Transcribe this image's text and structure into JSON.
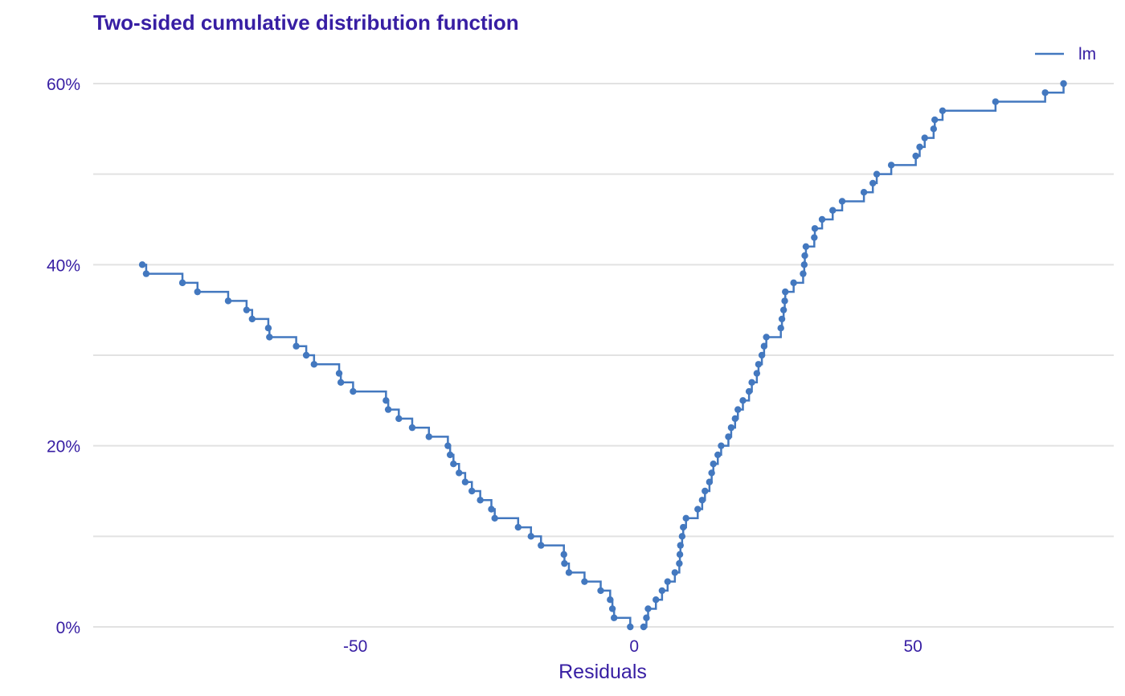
{
  "colors": {
    "text": "#371ea3",
    "series": "#4378bf",
    "grid": "#e2e2e2",
    "background": "#ffffff"
  },
  "chart_data": {
    "type": "line",
    "step": true,
    "title": "Two-sided cumulative distribution function",
    "xlabel": "Residuals",
    "ylabel": "",
    "xlim": [
      -97,
      86
    ],
    "ylim": [
      0,
      0.605
    ],
    "x_ticks": [
      {
        "value": -50,
        "label": "-50"
      },
      {
        "value": 0,
        "label": "0"
      },
      {
        "value": 50,
        "label": "50"
      }
    ],
    "y_ticks": [
      {
        "value": 0,
        "label": "0%"
      },
      {
        "value": 0.2,
        "label": "20%"
      },
      {
        "value": 0.4,
        "label": "40%"
      },
      {
        "value": 0.6,
        "label": "60%"
      }
    ],
    "y_minor_gridlines": [
      0.1,
      0.3,
      0.5
    ],
    "grid": true,
    "legend": {
      "position": "top-right",
      "entries": [
        "lm"
      ]
    },
    "series": [
      {
        "name": "lm",
        "color": "#4378bf",
        "left_x": [
          -88.2,
          -87.5,
          -81.0,
          -78.3,
          -72.8,
          -69.5,
          -68.5,
          -65.6,
          -65.4,
          -60.6,
          -58.8,
          -57.4,
          -52.9,
          -52.6,
          -50.4,
          -44.5,
          -44.1,
          -42.2,
          -39.8,
          -36.8,
          -33.4,
          -33.0,
          -32.4,
          -31.4,
          -30.3,
          -29.1,
          -27.6,
          -25.6,
          -25.0,
          -20.8,
          -18.5,
          -16.7,
          -12.6,
          -12.5,
          -11.7,
          -8.9,
          -6.0,
          -4.3,
          -3.9,
          -3.6,
          -0.7
        ],
        "left_y": [
          0.4,
          0.39,
          0.38,
          0.37,
          0.36,
          0.35,
          0.34,
          0.33,
          0.32,
          0.31,
          0.3,
          0.29,
          0.28,
          0.27,
          0.26,
          0.25,
          0.24,
          0.23,
          0.22,
          0.21,
          0.2,
          0.19,
          0.18,
          0.17,
          0.16,
          0.15,
          0.14,
          0.13,
          0.12,
          0.11,
          0.1,
          0.09,
          0.08,
          0.07,
          0.06,
          0.05,
          0.04,
          0.03,
          0.02,
          0.01,
          0.0
        ],
        "right_x": [
          1.7,
          2.2,
          2.5,
          3.9,
          5.0,
          6.0,
          7.3,
          8.1,
          8.2,
          8.3,
          8.6,
          8.8,
          9.3,
          11.4,
          12.2,
          12.7,
          13.5,
          13.9,
          14.2,
          15.0,
          15.6,
          16.9,
          17.4,
          18.1,
          18.6,
          19.5,
          20.6,
          21.1,
          22.0,
          22.3,
          22.9,
          23.3,
          23.7,
          26.3,
          26.5,
          26.8,
          27.0,
          27.1,
          28.6,
          30.3,
          30.5,
          30.6,
          30.8,
          32.3,
          32.4,
          33.7,
          35.6,
          37.3,
          41.2,
          42.8,
          43.5,
          46.1,
          50.5,
          51.2,
          52.1,
          53.7,
          53.9,
          55.3,
          64.8,
          73.7,
          77.0
        ],
        "right_y": [
          0.0,
          0.01,
          0.02,
          0.03,
          0.04,
          0.05,
          0.06,
          0.07,
          0.08,
          0.09,
          0.1,
          0.11,
          0.12,
          0.13,
          0.14,
          0.15,
          0.16,
          0.17,
          0.18,
          0.19,
          0.2,
          0.21,
          0.22,
          0.23,
          0.24,
          0.25,
          0.26,
          0.27,
          0.28,
          0.29,
          0.3,
          0.31,
          0.32,
          0.33,
          0.34,
          0.35,
          0.36,
          0.37,
          0.38,
          0.39,
          0.4,
          0.41,
          0.42,
          0.43,
          0.44,
          0.45,
          0.46,
          0.47,
          0.48,
          0.49,
          0.5,
          0.51,
          0.52,
          0.53,
          0.54,
          0.55,
          0.56,
          0.57,
          0.58,
          0.59,
          0.6
        ]
      }
    ]
  }
}
